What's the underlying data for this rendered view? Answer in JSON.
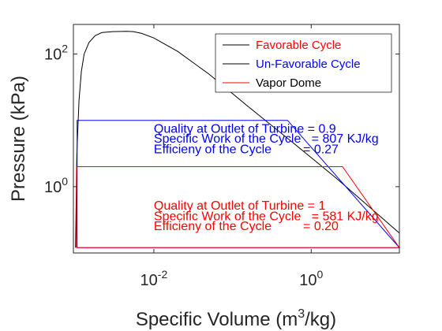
{
  "chart_data": {
    "type": "line",
    "title": "",
    "xlabel": "Specific Volume (m",
    "xlabel_sup": "3",
    "xlabel_tail": "/kg)",
    "ylabel": "Pressure (kPa)",
    "xscale": "log",
    "yscale": "log",
    "xlim": [
      0.00095,
      13.2
    ],
    "ylim": [
      0.1,
      280
    ],
    "xticks": [
      {
        "value": 0.01,
        "base": "10",
        "exp": "-2"
      },
      {
        "value": 1,
        "base": "10",
        "exp": "0"
      }
    ],
    "yticks": [
      {
        "value": 1,
        "base": "10",
        "exp": "0"
      },
      {
        "value": 100,
        "base": "10",
        "exp": "2"
      }
    ],
    "grid": false,
    "legend": {
      "position": "top-right",
      "entries": [
        {
          "label": "Favorable Cycle",
          "line_color": "#000000",
          "text_color": "#ff0000"
        },
        {
          "label": "Un-Favorable Cycle",
          "line_color": "#000000",
          "text_color": "#0000ff"
        },
        {
          "label": "Vapor Dome",
          "line_color": "#ff0000",
          "text_color": "#000000"
        }
      ]
    },
    "series": [
      {
        "key": "dome",
        "color": "#000000",
        "x": [
          0.00101,
          0.00105,
          0.00112,
          0.0012,
          0.0013,
          0.0015,
          0.0018,
          0.0022,
          0.003,
          0.0045,
          0.0055,
          0.007,
          0.01,
          0.02,
          0.05,
          0.15,
          0.6,
          2,
          6,
          13.2
        ],
        "y": [
          0.12,
          3,
          20,
          55,
          100,
          150,
          190,
          212,
          218,
          220,
          218,
          205,
          175,
          110,
          50,
          17,
          4.5,
          1.4,
          0.45,
          0.2
        ]
      },
      {
        "key": "unfavorable",
        "color": "#0000ff",
        "x": [
          0.00106,
          0.00106,
          0.5,
          13.2,
          0.00106
        ],
        "y": [
          0.12,
          10,
          10,
          0.12,
          0.12
        ]
      },
      {
        "key": "favorable",
        "color": "#ff0000",
        "x": [
          0.00104,
          0.00104,
          2.5,
          13.2,
          0.00104
        ],
        "y": [
          0.12,
          2,
          2,
          0.12,
          0.12
        ]
      }
    ],
    "annotations": [
      {
        "text": "Quality at Outlet of Turbine = 0.9",
        "color": "#0000ff",
        "x": 0.01,
        "y": 6.5
      },
      {
        "text": "Specific Work of the Cycle   = 807 KJ/kg",
        "color": "#0000ff",
        "x": 0.01,
        "y": 4.6
      },
      {
        "text": "Efficieny of the Cycle         = 0.27",
        "color": "#0000ff",
        "x": 0.01,
        "y": 3.2
      },
      {
        "text": "Quality at Outlet of Turbine = 1",
        "color": "#ff0000",
        "x": 0.01,
        "y": 0.45
      },
      {
        "text": "Specific Work of the Cycle   = 581 KJ/kg",
        "color": "#ff0000",
        "x": 0.01,
        "y": 0.31
      },
      {
        "text": "Efficieny of the Cycle         = 0.20",
        "color": "#ff0000",
        "x": 0.01,
        "y": 0.22
      }
    ]
  }
}
